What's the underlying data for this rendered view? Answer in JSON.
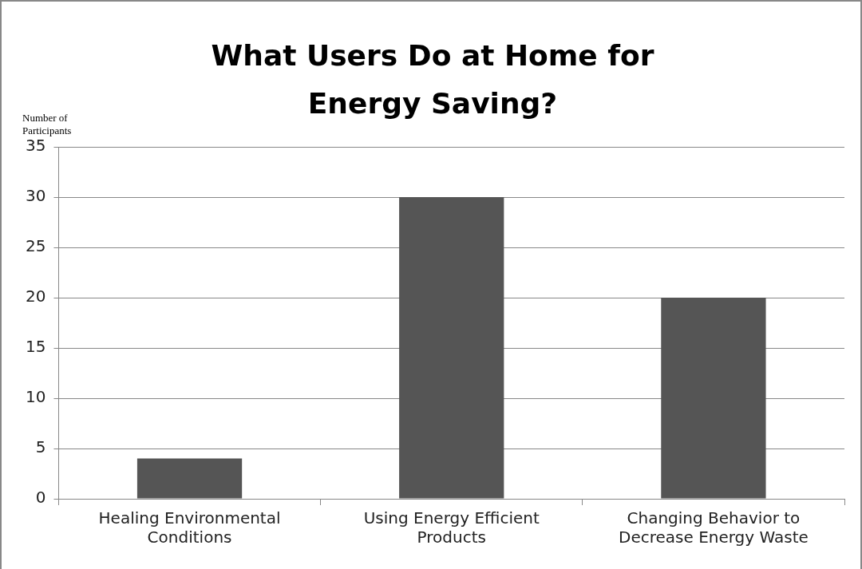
{
  "chart_data": {
    "type": "bar",
    "title": "What Users Do at Home for Energy Saving?",
    "ylabel": "Number of Participants",
    "categories": [
      "Healing Environmental Conditions",
      "Using Energy Efficient Products",
      "Changing Behavior to Decrease Energy Waste"
    ],
    "values": [
      4,
      30,
      20
    ],
    "color": "#555555",
    "ylim": [
      0,
      35
    ],
    "yticks": [
      0,
      5,
      10,
      15,
      20,
      25,
      30,
      35
    ],
    "grid": "y"
  }
}
